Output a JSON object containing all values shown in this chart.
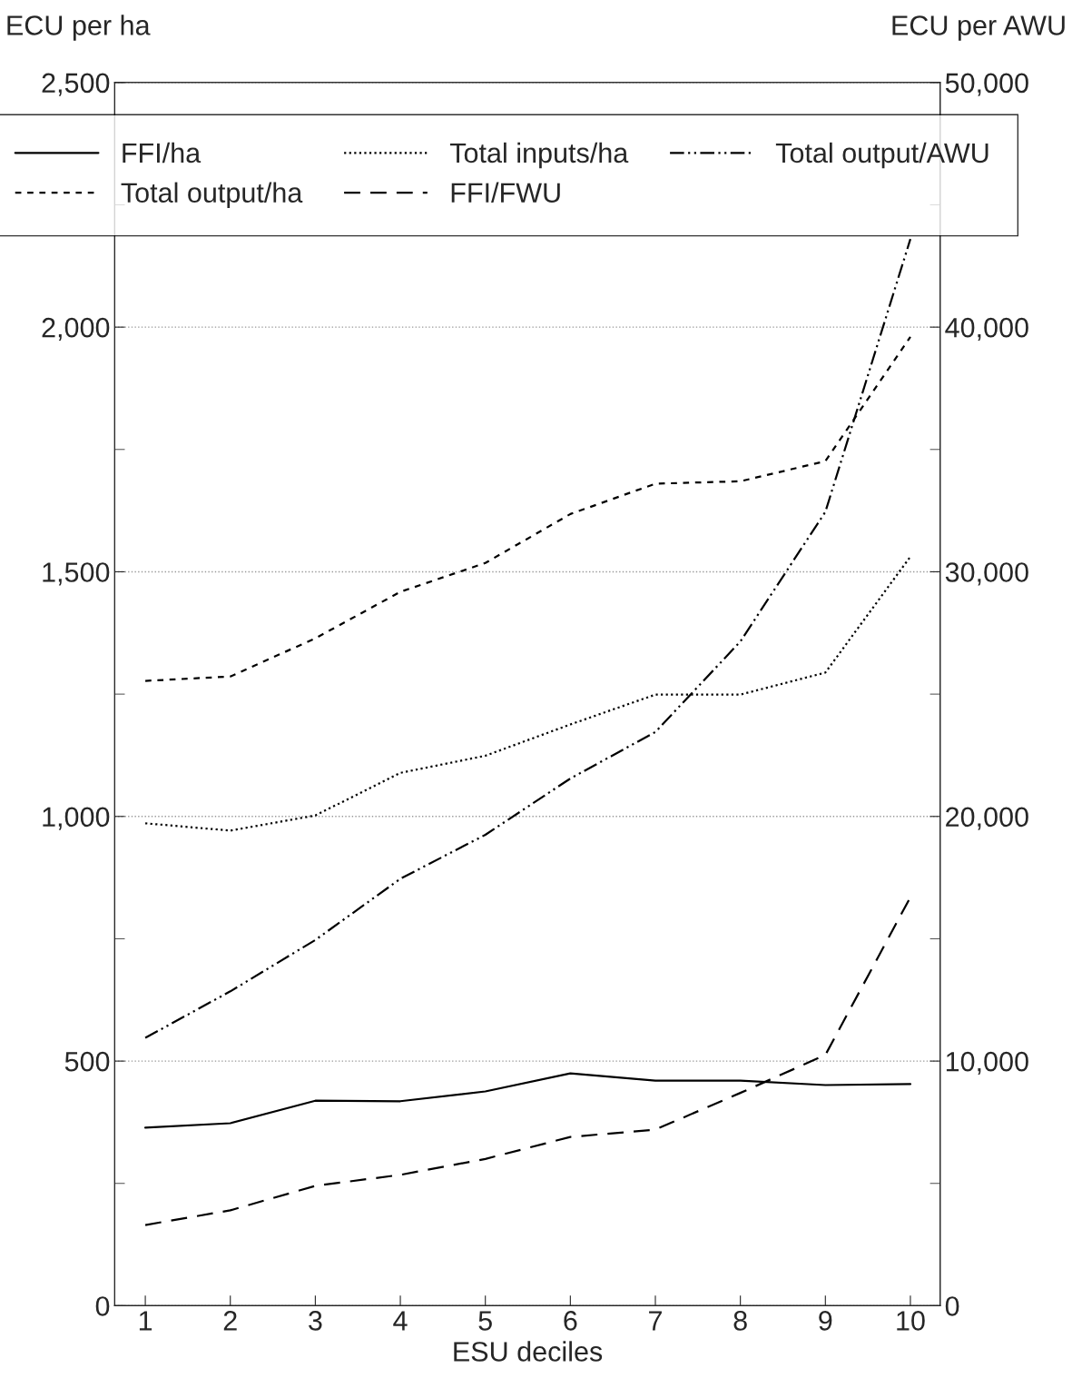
{
  "chart_data": {
    "type": "line",
    "xlabel": "ESU deciles",
    "ylabel": "ECU per ha",
    "y2label": "ECU per AWU",
    "x": [
      1,
      2,
      3,
      4,
      5,
      6,
      7,
      8,
      9,
      10
    ],
    "xlim": [
      0.64,
      10.35
    ],
    "xticks": [
      1,
      2,
      3,
      4,
      5,
      6,
      7,
      8,
      9,
      10
    ],
    "ylim": [
      0,
      2500
    ],
    "yticks": [
      {
        "value": 0,
        "label": "0"
      },
      {
        "value": 250,
        "label": null
      },
      {
        "value": 500,
        "label": "500"
      },
      {
        "value": 750,
        "label": null
      },
      {
        "value": 1000,
        "label": "1,000"
      },
      {
        "value": 1250,
        "label": null
      },
      {
        "value": 1500,
        "label": "1,500"
      },
      {
        "value": 1750,
        "label": null
      },
      {
        "value": 2000,
        "label": "2,000"
      },
      {
        "value": 2250,
        "label": null
      },
      {
        "value": 2500,
        "label": "2,500"
      }
    ],
    "y2lim": [
      0,
      50000
    ],
    "y2ticks": [
      {
        "value": 0,
        "label": "0"
      },
      {
        "value": 5000,
        "label": null
      },
      {
        "value": 10000,
        "label": "10,000"
      },
      {
        "value": 15000,
        "label": null
      },
      {
        "value": 20000,
        "label": "20,000"
      },
      {
        "value": 25000,
        "label": null
      },
      {
        "value": 30000,
        "label": "30,000"
      },
      {
        "value": 35000,
        "label": null
      },
      {
        "value": 40000,
        "label": "40,000"
      },
      {
        "value": 45000,
        "label": null
      },
      {
        "value": 50000,
        "label": "50,000"
      }
    ],
    "grid": "y",
    "legend": "top",
    "series": [
      {
        "name": "FFI/ha",
        "color": "#000000",
        "line_style": "solid",
        "values": [
          364,
          373,
          419,
          418,
          438,
          475,
          460,
          460,
          451,
          453
        ]
      },
      {
        "name": "Total output/ha",
        "color": "#000000",
        "line_style": "short_dashed",
        "values": [
          1277,
          1286,
          1364,
          1459,
          1518,
          1618,
          1680,
          1685,
          1726,
          1980
        ]
      },
      {
        "name": "Total inputs/ha",
        "color": "#000000",
        "line_style": "dotted",
        "values": [
          986,
          971,
          1002,
          1089,
          1124,
          1188,
          1249,
          1249,
          1294,
          1531
        ]
      },
      {
        "name": "FFI/FWU",
        "color": "#000000",
        "line_style": "dashed",
        "axis": "y2",
        "values": [
          3300,
          3900,
          4900,
          5350,
          6000,
          6900,
          7200,
          8700,
          10250,
          16700
        ]
      },
      {
        "name": "Total output/AWU",
        "color": "#000000",
        "line_style": "dashdot",
        "axis": "y2",
        "values": [
          10950,
          12850,
          14950,
          17450,
          19250,
          21550,
          23450,
          27150,
          32450,
          43600
        ]
      }
    ]
  }
}
